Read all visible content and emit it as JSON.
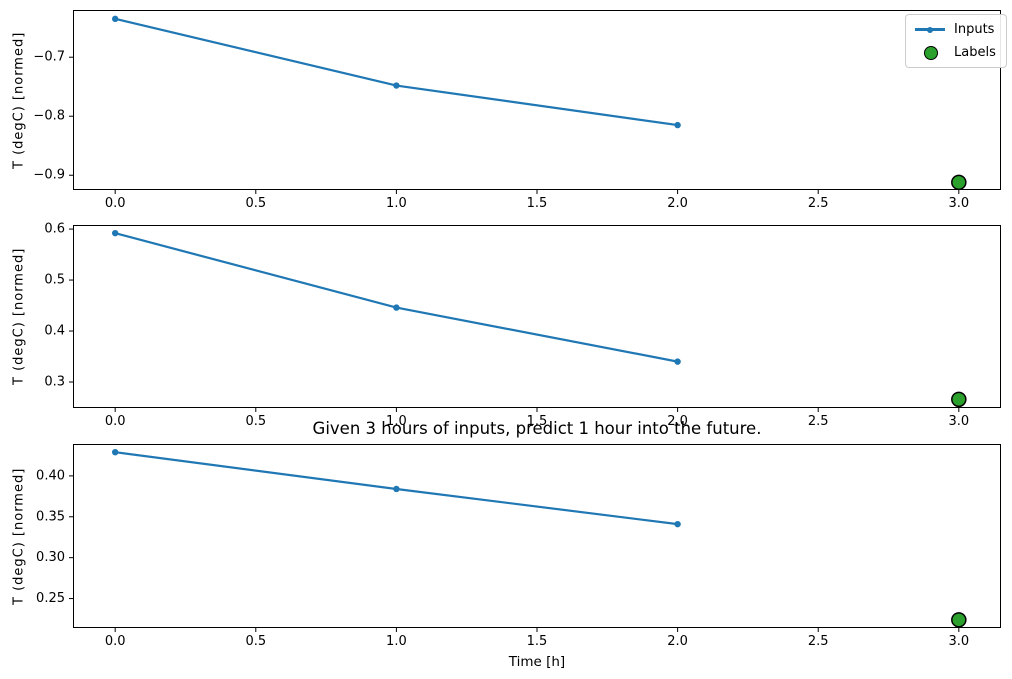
{
  "figure": {
    "background": "#ffffff",
    "title": "Given 3 hours of inputs, predict 1 hour into the future.",
    "xlabel": "Time [h]",
    "ylabel": "T (degC) [normed]",
    "line_color": "#1f77b4",
    "label_marker_color": "#2ca02c",
    "label_marker_edge_color": "#000000",
    "axis_color": "#000000",
    "legend": {
      "position": "upper right",
      "items": [
        {
          "label": "Inputs",
          "marker": "line-with-dot",
          "color": "#1f77b4"
        },
        {
          "label": "Labels",
          "marker": "filled-circle",
          "color": "#2ca02c",
          "edge_color": "#000000"
        }
      ]
    }
  },
  "chart_data": [
    {
      "type": "line",
      "name": "subplot-1",
      "x": [
        0,
        1,
        2
      ],
      "series": [
        {
          "name": "Inputs",
          "values": [
            -0.635,
            -0.748,
            -0.815
          ]
        }
      ],
      "label_point": {
        "name": "Labels",
        "x": 3,
        "y": -0.912
      },
      "xlim": [
        -0.15,
        3.15
      ],
      "ylim": [
        -0.925,
        -0.62
      ],
      "xticks": [
        0,
        0.5,
        1,
        1.5,
        2,
        2.5,
        3
      ],
      "xtick_labels": [
        "0.0",
        "0.5",
        "1.0",
        "1.5",
        "2.0",
        "2.5",
        "3.0"
      ],
      "yticks": [
        -0.7,
        -0.8,
        -0.9
      ],
      "ytick_labels": [
        "−0.7",
        "−0.8",
        "−0.9"
      ],
      "ylabel": "T (degC) [normed]",
      "grid": false,
      "legend_visible": true
    },
    {
      "type": "line",
      "name": "subplot-2",
      "x": [
        0,
        1,
        2
      ],
      "series": [
        {
          "name": "Inputs",
          "values": [
            0.592,
            0.446,
            0.34
          ]
        }
      ],
      "label_point": {
        "name": "Labels",
        "x": 3,
        "y": 0.266
      },
      "xlim": [
        -0.15,
        3.15
      ],
      "ylim": [
        0.249,
        0.608
      ],
      "xticks": [
        0,
        0.5,
        1,
        1.5,
        2,
        2.5,
        3
      ],
      "xtick_labels": [
        "0.0",
        "0.5",
        "1.0",
        "1.5",
        "2.0",
        "2.5",
        "3.0"
      ],
      "yticks": [
        0.6,
        0.5,
        0.4,
        0.3
      ],
      "ytick_labels": [
        "0.6",
        "0.5",
        "0.4",
        "0.3"
      ],
      "ylabel": "T (degC) [normed]",
      "grid": false,
      "legend_visible": false
    },
    {
      "type": "line",
      "name": "subplot-3",
      "x": [
        0,
        1,
        2
      ],
      "series": [
        {
          "name": "Inputs",
          "values": [
            0.429,
            0.384,
            0.341
          ]
        }
      ],
      "label_point": {
        "name": "Labels",
        "x": 3,
        "y": 0.224
      },
      "xlim": [
        -0.15,
        3.15
      ],
      "ylim": [
        0.214,
        0.439
      ],
      "xticks": [
        0,
        0.5,
        1,
        1.5,
        2,
        2.5,
        3
      ],
      "xtick_labels": [
        "0.0",
        "0.5",
        "1.0",
        "1.5",
        "2.0",
        "2.5",
        "3.0"
      ],
      "yticks": [
        0.4,
        0.35,
        0.3,
        0.25
      ],
      "ytick_labels": [
        "0.40",
        "0.35",
        "0.30",
        "0.25"
      ],
      "ylabel": "T (degC) [normed]",
      "xlabel": "Time [h]",
      "grid": false,
      "legend_visible": false
    }
  ],
  "layout_note": "three stacked line subplots, shared x axis style, labels marker at t=3"
}
